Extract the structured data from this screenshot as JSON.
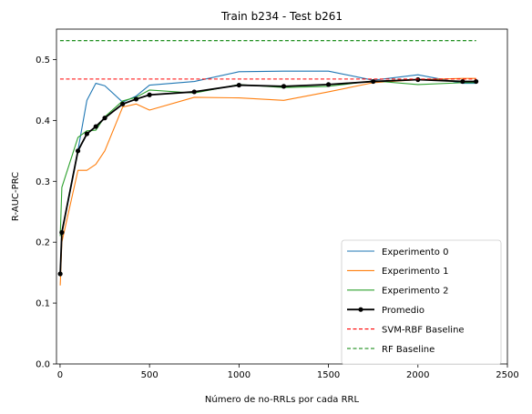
{
  "chart_data": {
    "type": "line",
    "title": "Train b234 - Test b261",
    "xlabel": "Número de no-RRLs por cada RRL",
    "ylabel": "R-AUC-PRC",
    "xlim": [
      -20,
      2500
    ],
    "ylim": [
      0.0,
      0.55
    ],
    "xticks": [
      0,
      500,
      1000,
      1500,
      2000,
      2500
    ],
    "yticks": [
      0.0,
      0.1,
      0.2,
      0.3,
      0.4,
      0.5
    ],
    "xtick_labels": [
      "0",
      "500",
      "1000",
      "1500",
      "2000",
      "2500"
    ],
    "ytick_labels": [
      "0.0",
      "0.1",
      "0.2",
      "0.3",
      "0.4",
      "0.5"
    ],
    "grid": false,
    "legend_position": "lower-right",
    "series": [
      {
        "name": "Experimento 0",
        "color": "#1f77b4",
        "style": "solid",
        "x": [
          1,
          10,
          100,
          150,
          200,
          250,
          350,
          425,
          500,
          750,
          1000,
          1250,
          1500,
          1750,
          2000,
          2250,
          2325
        ],
        "y": [
          0.149,
          0.217,
          0.351,
          0.433,
          0.461,
          0.457,
          0.43,
          0.44,
          0.458,
          0.464,
          0.48,
          0.481,
          0.481,
          0.466,
          0.475,
          0.461,
          0.461
        ]
      },
      {
        "name": "Experimento 1",
        "color": "#ff7f0e",
        "style": "solid",
        "x": [
          1,
          10,
          100,
          150,
          200,
          250,
          350,
          425,
          500,
          750,
          1000,
          1250,
          1500,
          1750,
          2000,
          2250,
          2325
        ],
        "y": [
          0.129,
          0.2,
          0.318,
          0.318,
          0.328,
          0.35,
          0.422,
          0.427,
          0.417,
          0.438,
          0.437,
          0.433,
          0.447,
          0.462,
          0.467,
          0.469,
          0.469
        ]
      },
      {
        "name": "Experimento 2",
        "color": "#2ca02c",
        "style": "solid",
        "x": [
          1,
          10,
          100,
          150,
          200,
          250,
          350,
          425,
          500,
          750,
          1000,
          1250,
          1500,
          1750,
          2000,
          2250,
          2325
        ],
        "y": [
          0.21,
          0.29,
          0.372,
          0.383,
          0.384,
          0.406,
          0.432,
          0.438,
          0.45,
          0.445,
          0.459,
          0.454,
          0.456,
          0.465,
          0.459,
          0.462,
          0.462
        ]
      },
      {
        "name": "Promedio",
        "color": "#000000",
        "style": "solid-marker",
        "x": [
          1,
          10,
          100,
          150,
          200,
          250,
          350,
          425,
          500,
          750,
          1000,
          1250,
          1500,
          1750,
          2000,
          2250,
          2325
        ],
        "y": [
          0.148,
          0.216,
          0.35,
          0.378,
          0.39,
          0.404,
          0.427,
          0.435,
          0.442,
          0.447,
          0.458,
          0.456,
          0.459,
          0.464,
          0.467,
          0.464,
          0.464
        ]
      },
      {
        "name": "SVM-RBF Baseline",
        "color": "#ff0000",
        "style": "dashed",
        "x": [
          0,
          2325
        ],
        "y": [
          0.468,
          0.468
        ]
      },
      {
        "name": "RF Baseline",
        "color": "#008000",
        "style": "dashed",
        "x": [
          0,
          2325
        ],
        "y": [
          0.531,
          0.531
        ]
      }
    ]
  }
}
